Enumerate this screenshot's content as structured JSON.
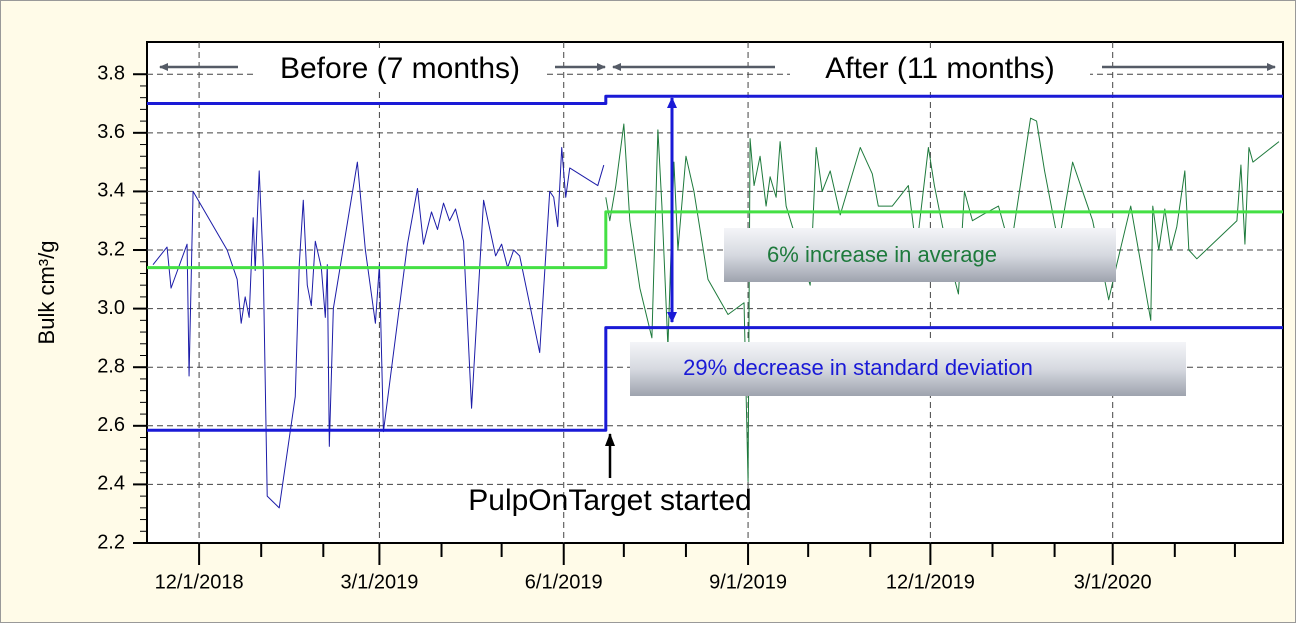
{
  "chart_data": {
    "type": "line",
    "y_label": "Bulk cm³/g",
    "xlim": [
      "11/5/2018",
      "5/25/2020"
    ],
    "xticks": [
      "12/1/2018",
      "3/1/2019",
      "6/1/2019",
      "9/1/2019",
      "12/1/2019",
      "3/1/2020"
    ],
    "xminorticks": [
      "1/1/2019",
      "2/1/2019",
      "4/1/2019",
      "5/1/2019",
      "7/1/2019",
      "8/1/2019",
      "10/1/2019",
      "11/1/2019",
      "1/1/2020",
      "2/1/2020",
      "4/1/2020",
      "5/1/2020"
    ],
    "ylim": [
      2.2,
      3.91
    ],
    "yticks": [
      {
        "value": 2.2,
        "label": "2.2"
      },
      {
        "value": 2.4,
        "label": "2.4"
      },
      {
        "value": 2.6,
        "label": "2.6"
      },
      {
        "value": 2.8,
        "label": "2.8"
      },
      {
        "value": 3.0,
        "label": "3.0"
      },
      {
        "value": 3.2,
        "label": "3.2"
      },
      {
        "value": 3.4,
        "label": "3.4"
      },
      {
        "value": 3.6,
        "label": "3.6"
      },
      {
        "value": 3.8,
        "label": "3.8"
      }
    ],
    "grid": true,
    "series": [
      {
        "color": "#1c1ca8",
        "width": 1,
        "x": [
          "11/8/2018",
          "11/15/2018",
          "11/17/2018",
          "11/25/2018",
          "11/26/2018",
          "11/28/2018",
          "12/15/2018",
          "12/20/2018",
          "12/22/2018",
          "12/24/2018",
          "12/26/2018",
          "12/28/2018",
          "12/29/2018",
          "12/31/2018",
          "1/2/2019",
          "1/4/2019",
          "1/10/2019",
          "1/18/2019",
          "1/20/2019",
          "1/22/2019",
          "1/24/2019",
          "1/26/2019",
          "1/28/2019",
          "1/31/2019",
          "2/2/2019",
          "2/3/2019",
          "2/4/2019",
          "2/6/2019",
          "2/18/2019",
          "2/22/2019",
          "2/27/2019",
          "3/1/2019",
          "3/3/2019",
          "3/15/2019",
          "3/20/2019",
          "3/23/2019",
          "3/27/2019",
          "3/30/2019",
          "4/2/2019",
          "4/5/2019",
          "4/8/2019",
          "4/12/2019",
          "4/16/2019",
          "4/22/2019",
          "4/28/2019",
          "5/1/2019",
          "5/4/2019",
          "5/7/2019",
          "5/10/2019",
          "5/20/2019",
          "5/25/2019",
          "5/27/2019",
          "5/29/2019",
          "5/31/2019",
          "6/2/2019",
          "6/4/2019",
          "6/18/2019",
          "6/21/2019"
        ],
        "values": [
          3.15,
          3.21,
          3.07,
          3.22,
          2.77,
          3.4,
          3.2,
          3.1,
          2.95,
          3.04,
          2.97,
          3.31,
          3.13,
          3.47,
          3.15,
          2.36,
          2.32,
          2.7,
          3.15,
          3.37,
          3.08,
          3.01,
          3.23,
          3.14,
          2.97,
          3.15,
          2.53,
          3.0,
          3.5,
          3.2,
          2.95,
          3.15,
          2.58,
          3.22,
          3.41,
          3.22,
          3.33,
          3.27,
          3.36,
          3.3,
          3.34,
          3.23,
          2.66,
          3.37,
          3.18,
          3.22,
          3.14,
          3.2,
          3.18,
          2.85,
          3.4,
          3.38,
          3.28,
          3.55,
          3.38,
          3.48,
          3.42,
          3.49
        ]
      },
      {
        "color": "#1e7a3c",
        "width": 1,
        "x": [
          "6/22/2019",
          "6/24/2019",
          "6/27/2019",
          "7/1/2019",
          "7/4/2019",
          "7/9/2019",
          "7/15/2019",
          "7/18/2019",
          "7/20/2019",
          "7/23/2019",
          "7/26/2019",
          "7/28/2019",
          "8/1/2019",
          "8/5/2019",
          "8/12/2019",
          "8/22/2019",
          "8/30/2019",
          "9/1/2019",
          "9/2/2019",
          "9/4/2019",
          "9/7/2019",
          "9/10/2019",
          "9/12/2019",
          "9/15/2019",
          "9/17/2019",
          "9/20/2019",
          "10/2/2019",
          "10/5/2019",
          "10/8/2019",
          "10/12/2019",
          "10/17/2019",
          "10/27/2019",
          "11/2/2019",
          "11/5/2019",
          "11/12/2019",
          "11/20/2019",
          "11/24/2019",
          "11/30/2019",
          "12/3/2019",
          "12/10/2019",
          "12/15/2019",
          "12/18/2019",
          "12/22/2019",
          "12/27/2019",
          "1/4/2020",
          "1/10/2020",
          "1/20/2020",
          "1/23/2020",
          "1/27/2020",
          "2/3/2020",
          "2/10/2020",
          "2/15/2020",
          "2/20/2020",
          "2/28/2020",
          "3/3/2020",
          "3/10/2020",
          "3/20/2020",
          "3/21/2020",
          "3/24/2020",
          "3/27/2020",
          "3/30/2020",
          "4/2/2020",
          "4/6/2020",
          "4/8/2020",
          "4/12/2020",
          "5/2/2020",
          "5/4/2020",
          "5/6/2020",
          "5/8/2020",
          "5/10/2020",
          "5/23/2020"
        ],
        "values": [
          3.38,
          3.3,
          3.42,
          3.63,
          3.3,
          3.07,
          2.9,
          3.61,
          3.35,
          2.87,
          3.5,
          3.2,
          3.52,
          3.4,
          3.1,
          2.98,
          3.02,
          2.41,
          3.58,
          3.42,
          3.52,
          3.35,
          3.45,
          3.38,
          3.57,
          3.35,
          3.08,
          3.55,
          3.4,
          3.47,
          3.32,
          3.55,
          3.46,
          3.35,
          3.35,
          3.42,
          3.2,
          3.55,
          3.42,
          3.18,
          3.05,
          3.4,
          3.3,
          3.32,
          3.35,
          3.2,
          3.65,
          3.64,
          3.47,
          3.22,
          3.5,
          3.4,
          3.3,
          3.03,
          3.15,
          3.35,
          2.96,
          3.35,
          3.2,
          3.34,
          3.2,
          3.28,
          3.47,
          3.2,
          3.17,
          3.3,
          3.49,
          3.22,
          3.55,
          3.5,
          3.57
        ]
      },
      {
        "color": "#1a1ad6",
        "width": 3,
        "x": [
          "11/5/2018",
          "6/22/2019",
          "6/22/2019",
          "5/25/2020"
        ],
        "values": [
          3.7,
          3.7,
          3.725,
          3.725
        ]
      },
      {
        "color": "#44e044",
        "width": 3,
        "x": [
          "11/5/2018",
          "6/22/2019",
          "6/22/2019",
          "5/25/2020"
        ],
        "values": [
          3.14,
          3.14,
          3.33,
          3.33
        ]
      },
      {
        "color": "#1a1ad6",
        "width": 3,
        "x": [
          "11/5/2018",
          "6/22/2019",
          "6/22/2019",
          "5/25/2020"
        ],
        "values": [
          2.585,
          2.585,
          2.935,
          2.935
        ]
      }
    ],
    "annotations": [
      "Before (7 months)",
      "After (11 months)",
      "6% increase in average",
      "29% decrease in standard deviation",
      "PulpOnTarget started"
    ]
  }
}
